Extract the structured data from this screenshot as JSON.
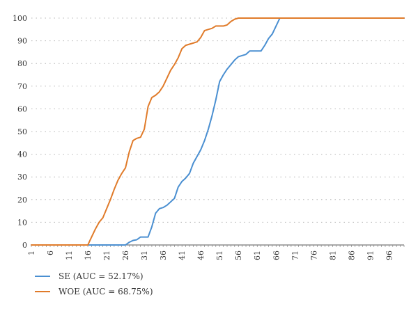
{
  "chart_data": {
    "type": "line",
    "title": "",
    "xlabel": "",
    "ylabel": "",
    "xlim": [
      1,
      100
    ],
    "ylim": [
      0,
      100
    ],
    "y_ticks": [
      0,
      10,
      20,
      30,
      40,
      50,
      60,
      70,
      80,
      90,
      100
    ],
    "x_ticks": [
      1,
      6,
      11,
      16,
      21,
      26,
      31,
      36,
      41,
      46,
      51,
      56,
      61,
      66,
      71,
      76,
      81,
      86,
      91,
      96
    ],
    "grid": "horizontal dotted",
    "legend_position": "bottom-left",
    "series": [
      {
        "name": "SE (AUC = 52.17%)",
        "color": "#4a8fd1",
        "x": [
          1,
          26,
          27,
          28,
          29,
          30,
          31,
          32,
          33,
          34,
          35,
          36,
          37,
          38,
          39,
          40,
          41,
          42,
          43,
          44,
          45,
          46,
          47,
          48,
          49,
          50,
          51,
          52,
          53,
          54,
          55,
          56,
          57,
          58,
          59,
          60,
          61,
          62,
          63,
          64,
          65,
          66,
          67,
          68,
          69,
          100
        ],
        "values": [
          0,
          0,
          1.2,
          2,
          2.3,
          3.5,
          3.5,
          3.5,
          8,
          14,
          16,
          16.5,
          17.5,
          19,
          20.5,
          25.5,
          28,
          29.5,
          31.5,
          36,
          39,
          42,
          46,
          51,
          57,
          64,
          72,
          75,
          77.5,
          79.5,
          81.5,
          83,
          83.5,
          84,
          85.5,
          85.5,
          85.5,
          85.5,
          88,
          91,
          93,
          96.5,
          100,
          100,
          100,
          100
        ]
      },
      {
        "name": "WOE (AUC = 68.75%)",
        "color": "#e07b2a",
        "x": [
          1,
          16,
          17,
          18,
          19,
          20,
          21,
          22,
          23,
          24,
          25,
          26,
          27,
          28,
          29,
          30,
          31,
          32,
          33,
          34,
          35,
          36,
          37,
          38,
          39,
          40,
          41,
          42,
          43,
          44,
          45,
          46,
          47,
          48,
          49,
          50,
          51,
          52,
          53,
          54,
          55,
          56,
          57,
          58,
          100
        ],
        "values": [
          0,
          0,
          3.5,
          7,
          10,
          12,
          16,
          20,
          24.5,
          28.5,
          31.5,
          34,
          41,
          46,
          47,
          47.5,
          51,
          61,
          65,
          66,
          67.5,
          70,
          73.5,
          77,
          79.5,
          82.5,
          86.5,
          88,
          88.5,
          89,
          89.5,
          91.5,
          94.5,
          95,
          95.5,
          96.5,
          96.5,
          96.5,
          97,
          98.5,
          99.5,
          100,
          100,
          100,
          100
        ]
      }
    ]
  }
}
